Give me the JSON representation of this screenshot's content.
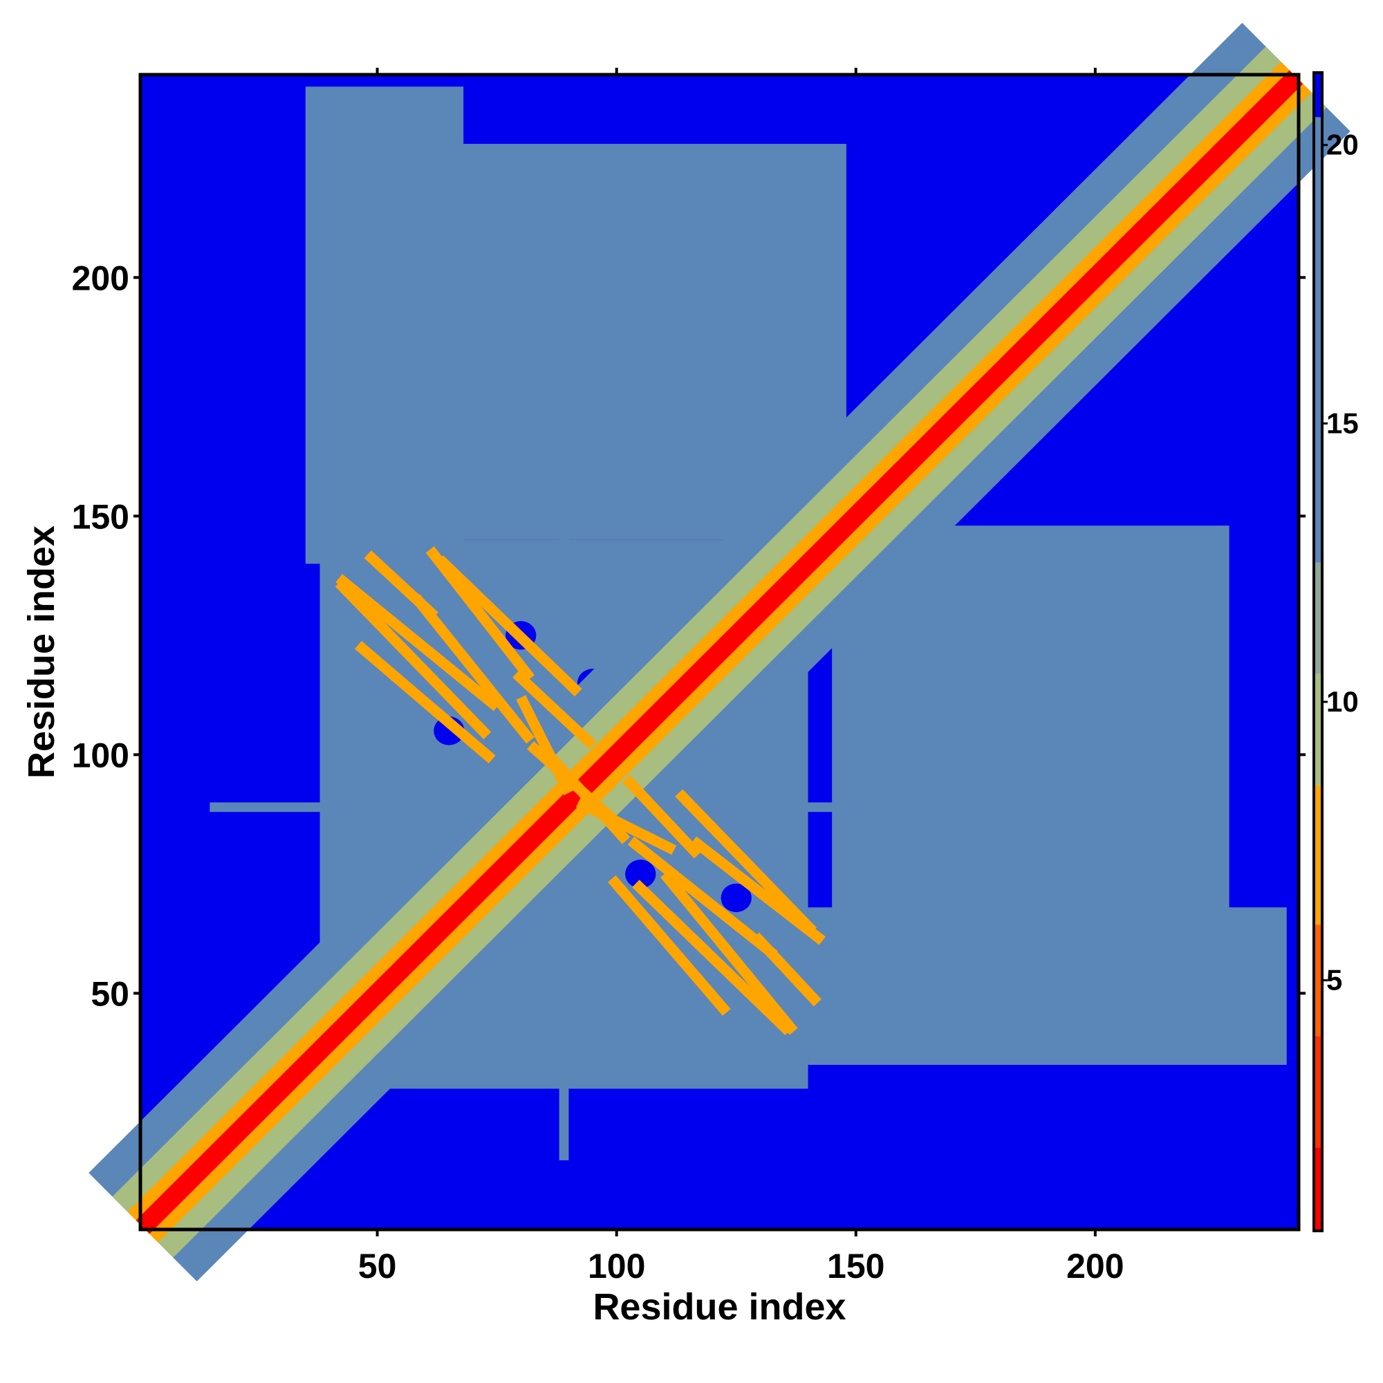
{
  "chart_data": {
    "type": "heatmap",
    "title": "",
    "xlabel": "Residue index",
    "ylabel": "Residue index",
    "xlim": [
      1,
      242
    ],
    "ylim": [
      1,
      242
    ],
    "x_ticks": [
      50,
      100,
      150,
      200
    ],
    "y_ticks": [
      50,
      100,
      150,
      200
    ],
    "colorbar": {
      "ticks": [
        5,
        10,
        15,
        20
      ],
      "range": [
        0.5,
        21.3
      ],
      "levels": [
        {
          "max": 2,
          "color": "#ff0000"
        },
        {
          "max": 4,
          "color": "#ff3000"
        },
        {
          "max": 6,
          "color": "#ff6400"
        },
        {
          "max": 8.5,
          "color": "#ffa500"
        },
        {
          "max": 10.5,
          "color": "#a8bd80"
        },
        {
          "max": 12.5,
          "color": "#8fa89a"
        },
        {
          "max": 20.5,
          "color": "#5b86b8"
        },
        {
          "max": 1000,
          "color": "#0000ee"
        }
      ]
    },
    "symmetric_blocks": [
      {
        "x": [
          145,
          228
        ],
        "y": [
          58,
          148
        ],
        "level": "#5b86b8"
      },
      {
        "x": [
          140,
          240
        ],
        "y": [
          35,
          68
        ],
        "level": "#5b86b8"
      }
    ]
  }
}
